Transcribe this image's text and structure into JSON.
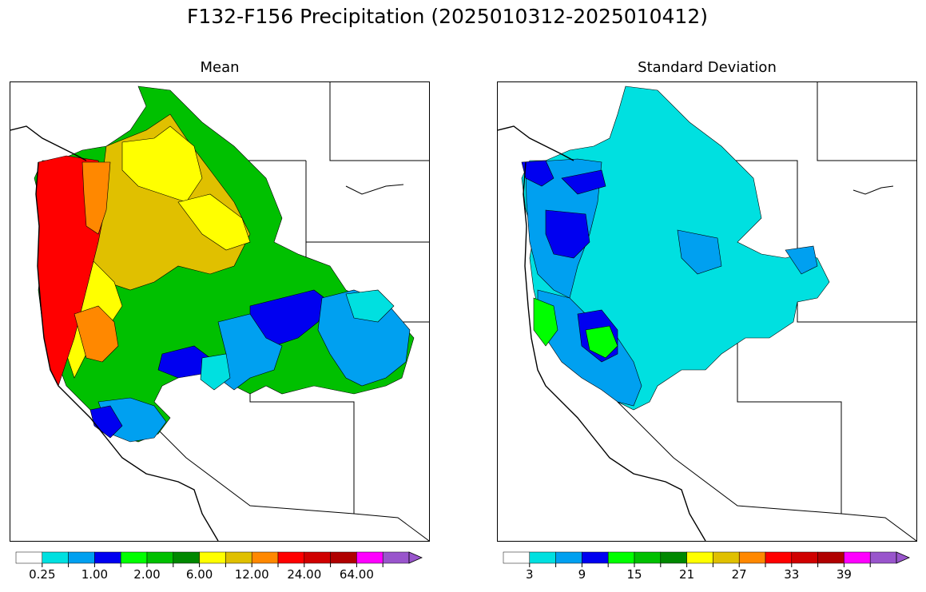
{
  "title": "F132-F156 Precipitation (2025010312-2025010412)",
  "panels": [
    {
      "name": "mean",
      "title": "Mean",
      "colorbar": {
        "colors": [
          "#ffffff",
          "#00e0e0",
          "#00a0f0",
          "#0000f0",
          "#00ff00",
          "#00c000",
          "#008800",
          "#ffff00",
          "#e0c000",
          "#ff8800",
          "#ff0000",
          "#d00000",
          "#b00000",
          "#ff00ff",
          "#9955cc"
        ],
        "tick_labels": [
          "0.25",
          "1.00",
          "2.00",
          "6.00",
          "12.00",
          "24.00",
          "64.00"
        ],
        "extend": "max"
      }
    },
    {
      "name": "standard-deviation",
      "title": "Standard Deviation",
      "colorbar": {
        "colors": [
          "#ffffff",
          "#00e0e0",
          "#00a0f0",
          "#0000f0",
          "#00ff00",
          "#00c000",
          "#008800",
          "#ffff00",
          "#e0c000",
          "#ff8800",
          "#ff0000",
          "#d00000",
          "#b00000",
          "#ff00ff",
          "#9955cc"
        ],
        "tick_labels": [
          "3",
          "9",
          "15",
          "21",
          "27",
          "33",
          "39"
        ],
        "extend": "max"
      }
    }
  ]
}
